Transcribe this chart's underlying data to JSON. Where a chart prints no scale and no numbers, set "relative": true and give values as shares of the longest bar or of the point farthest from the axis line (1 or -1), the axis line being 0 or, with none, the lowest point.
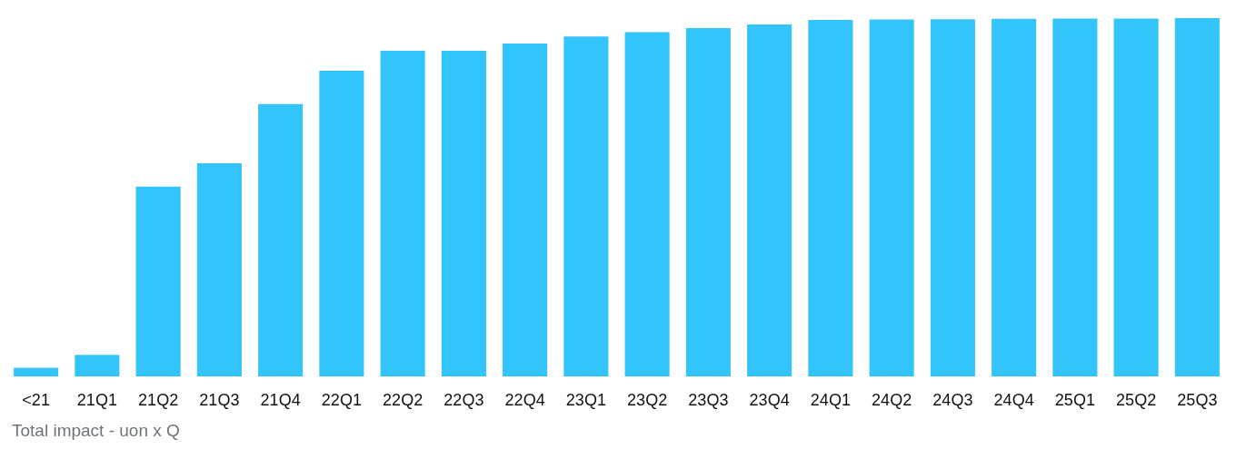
{
  "chart_data": {
    "type": "bar",
    "title": "Total impact - uon x Q",
    "relative": true,
    "categories": [
      "<21",
      "21Q1",
      "21Q2",
      "21Q3",
      "21Q4",
      "22Q1",
      "22Q2",
      "22Q3",
      "22Q4",
      "23Q1",
      "23Q2",
      "23Q3",
      "23Q4",
      "24Q1",
      "24Q2",
      "24Q3",
      "24Q4",
      "25Q1",
      "25Q2",
      "25Q3"
    ],
    "values": [
      0.024,
      0.06,
      0.53,
      0.595,
      0.76,
      0.853,
      0.909,
      0.909,
      0.929,
      0.949,
      0.961,
      0.972,
      0.982,
      0.995,
      0.996,
      0.997,
      0.998,
      0.999,
      0.999,
      1
    ],
    "color": "#33c4fc"
  }
}
